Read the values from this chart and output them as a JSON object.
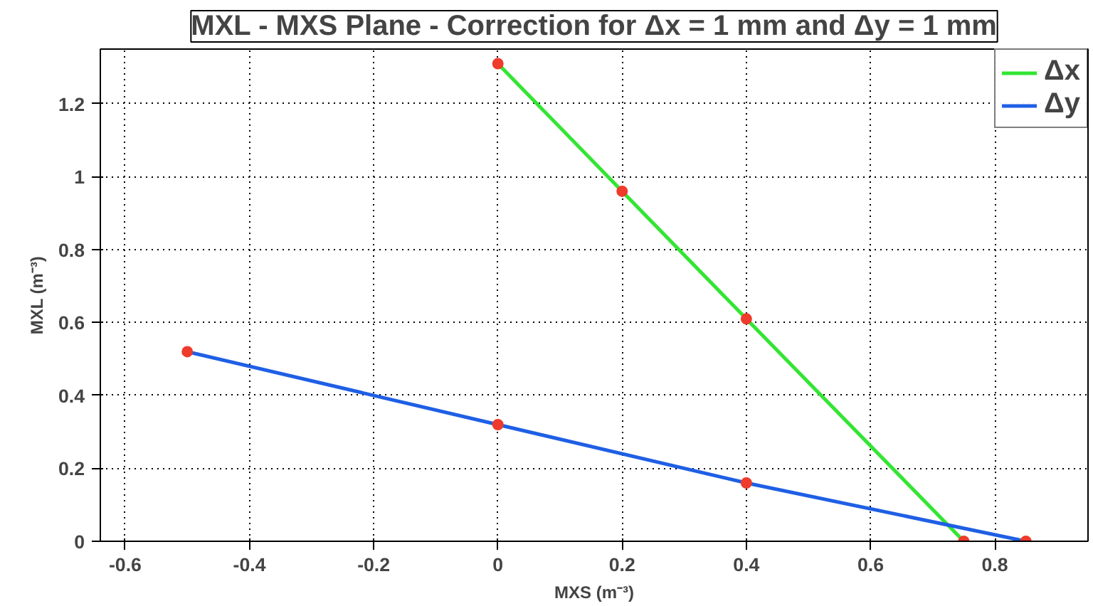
{
  "chart_data": {
    "type": "line",
    "title": "MXL - MXS Plane - Correction for Δx = 1 mm and Δy = 1 mm",
    "xlabel": "MXS (m⁻³)",
    "ylabel": "MXL (m⁻³)",
    "series": [
      {
        "name": "Δx",
        "color": "#33e533",
        "x": [
          0,
          0.2,
          0.4,
          0.75
        ],
        "values": [
          1.31,
          0.96,
          0.61,
          0
        ]
      },
      {
        "name": "Δy",
        "color": "#1f5fe5",
        "x": [
          -0.5,
          0,
          0.4,
          0.85
        ],
        "values": [
          0.52,
          0.32,
          0.16,
          0
        ]
      }
    ],
    "xlim": [
      -0.64,
      0.95
    ],
    "ylim": [
      0,
      1.35
    ],
    "xticks": [
      -0.6,
      -0.4,
      -0.2,
      0,
      0.2,
      0.4,
      0.6,
      0.8
    ],
    "yticks": [
      0,
      0.2,
      0.4,
      0.6,
      0.8,
      1,
      1.2
    ],
    "grid": true,
    "legend": "top right",
    "marker": "circle",
    "line_style": "solid"
  }
}
